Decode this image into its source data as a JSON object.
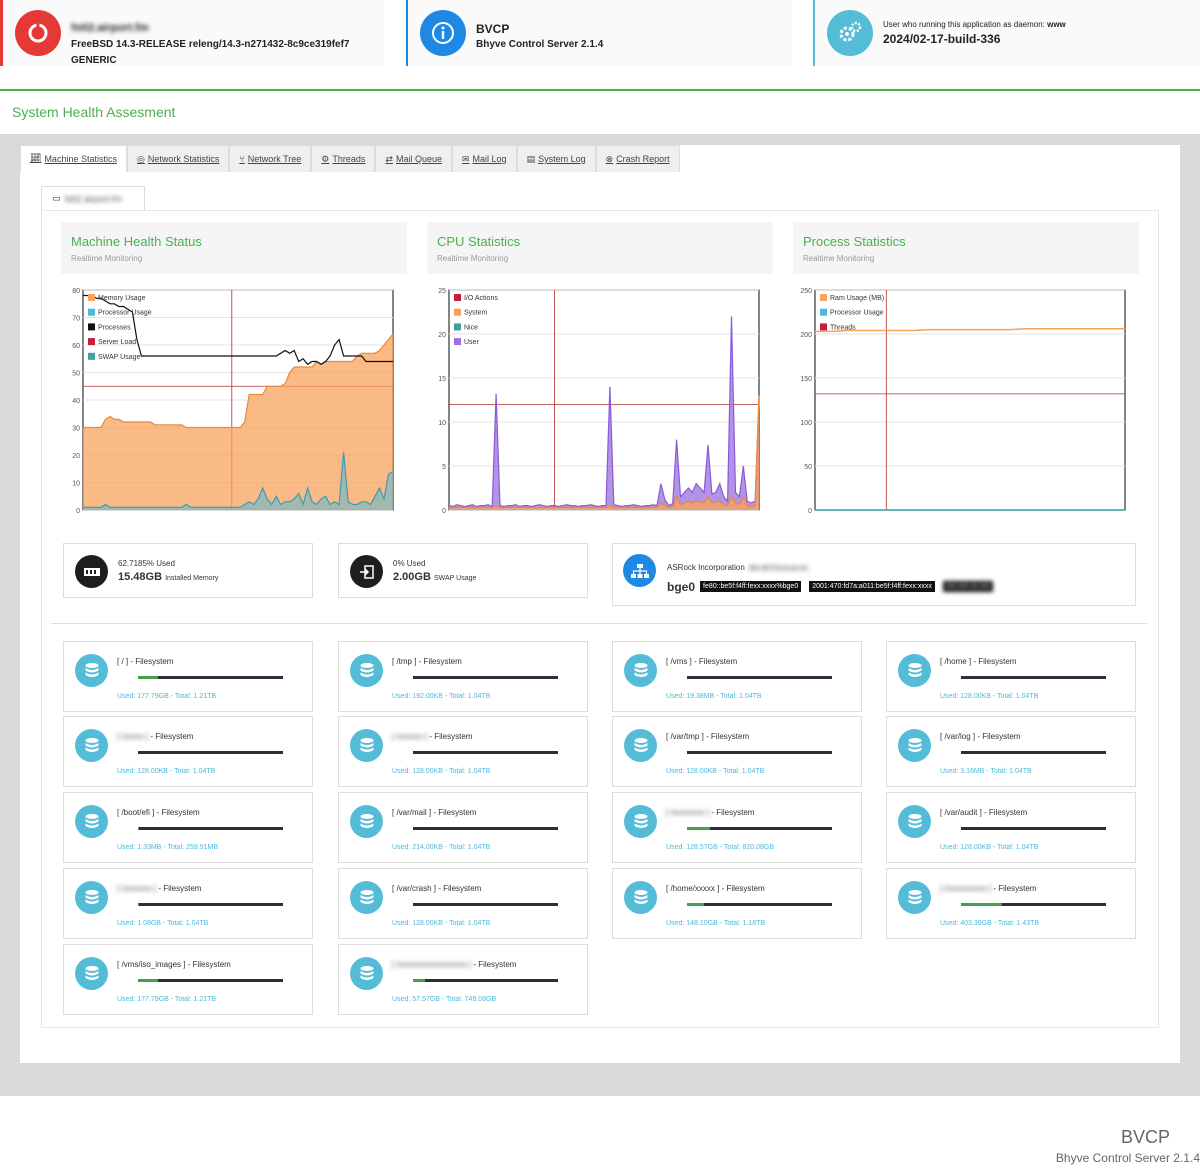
{
  "header": {
    "host_name": "fstt2.airport.fm",
    "os_version": "FreeBSD 14.3-RELEASE releng/14.3-n271432-8c9ce319fef7 GENERIC",
    "app_name": "BVCP",
    "app_full": "Bhyve Control Server 2.1.4",
    "daemon_label": "User who running this application as daemon:",
    "daemon_user": "www",
    "build": "2024/02-17-build-336"
  },
  "page": {
    "section_title": "System Health Assesment"
  },
  "tabs": [
    {
      "label": "Machine Statistics",
      "icon": "chart-icon"
    },
    {
      "label": "Network Statistics",
      "icon": "globe-icon"
    },
    {
      "label": "Network Tree",
      "icon": "tree-icon"
    },
    {
      "label": "Threads",
      "icon": "threads-icon"
    },
    {
      "label": "Mail Queue",
      "icon": "exchange-icon"
    },
    {
      "label": "Mail Log",
      "icon": "envelope-icon"
    },
    {
      "label": "System Log",
      "icon": "folder-icon"
    },
    {
      "label": "Crash Report",
      "icon": "times-circle-icon"
    }
  ],
  "inner_tab": {
    "label": "fstt2.airport.fm"
  },
  "charts": [
    {
      "title": "Machine Health Status",
      "subtitle": "Realtime Monitoring"
    },
    {
      "title": "CPU Statistics",
      "subtitle": "Realtime Monitoring"
    },
    {
      "title": "Process Statistics",
      "subtitle": "Realtime Monitoring"
    }
  ],
  "chart_data": [
    {
      "type": "area",
      "title": "Machine Health Status",
      "ylim": [
        0,
        80
      ],
      "yticks": [
        0,
        10,
        20,
        30,
        40,
        50,
        60,
        70,
        80
      ],
      "legend": [
        "Memory Usage",
        "Processor Usage",
        "Processes",
        "Server Load",
        "SWAP Usage"
      ],
      "legend_colors": [
        "#f7a35c",
        "#4db8d8",
        "#111111",
        "#c0203c",
        "#41a0a0"
      ],
      "series": [
        {
          "name": "Memory Usage",
          "values": [
            30,
            30,
            30,
            30,
            30,
            33,
            34,
            33,
            33,
            32,
            32,
            32,
            32,
            32,
            32,
            32,
            31,
            31,
            31,
            31,
            31,
            31,
            31,
            30,
            30,
            30,
            30,
            30,
            30,
            30,
            30,
            30,
            30,
            30,
            30,
            30,
            32,
            42,
            42,
            42,
            42,
            45,
            45,
            45,
            45,
            46,
            50,
            52,
            52,
            52,
            52,
            52,
            54,
            53,
            54,
            54,
            54,
            54,
            54,
            54,
            54,
            56,
            57,
            57,
            57,
            57,
            58,
            60,
            62,
            64
          ]
        },
        {
          "name": "Processes",
          "values": [
            78,
            78,
            78,
            77,
            77,
            76,
            75,
            75,
            74,
            74,
            73,
            72,
            62,
            56,
            56,
            56,
            56,
            56,
            56,
            56,
            56,
            56,
            56,
            56,
            56,
            56,
            56,
            56,
            56,
            56,
            56,
            56,
            56,
            56,
            56,
            56,
            56,
            56,
            56,
            56,
            56,
            56,
            56,
            56,
            57,
            58,
            57,
            58,
            54,
            55,
            53,
            54,
            54,
            53,
            54,
            56,
            60,
            62,
            56,
            56,
            56,
            56,
            56,
            54,
            54,
            54,
            54,
            54,
            54,
            54
          ]
        },
        {
          "name": "Processor Usage",
          "values": [
            1,
            1,
            1,
            1,
            1,
            2,
            1,
            1,
            1,
            1,
            1,
            1,
            1,
            1,
            1,
            1,
            1,
            1,
            1,
            1,
            1,
            1,
            1,
            2,
            1,
            1,
            1,
            1,
            1,
            1,
            1,
            1,
            1,
            1,
            1,
            1,
            2,
            3,
            2,
            4,
            8,
            4,
            2,
            5,
            2,
            3,
            3,
            4,
            6,
            2,
            8,
            3,
            2,
            4,
            5,
            2,
            3,
            2,
            21,
            3,
            2,
            2,
            3,
            3,
            2,
            5,
            8,
            4,
            13,
            14
          ]
        }
      ]
    },
    {
      "type": "area",
      "title": "CPU Statistics",
      "ylim": [
        0,
        25
      ],
      "yticks": [
        0,
        5,
        10,
        15,
        20,
        25
      ],
      "legend": [
        "I/O Actions",
        "System",
        "Nice",
        "User"
      ],
      "legend_colors": [
        "#c0203c",
        "#f7a35c",
        "#41a0a0",
        "#9a6fe0"
      ],
      "series": [
        {
          "name": "User",
          "values": [
            0.5,
            0.4,
            0.6,
            0.5,
            0.4,
            0.5,
            0.6,
            0.4,
            0.5,
            0.5,
            0.6,
            0.4,
            13.2,
            0.5,
            0.4,
            0.5,
            0.5,
            0.6,
            0.4,
            0.5,
            0.5,
            0.4,
            0.5,
            0.6,
            0.5,
            0.4,
            0.5,
            0.5,
            0.4,
            0.5,
            0.6,
            0.5,
            0.5,
            0.4,
            0.5,
            0.5,
            0.6,
            0.5,
            0.4,
            0.5,
            0.5,
            14.0,
            0.6,
            0.5,
            0.4,
            0.5,
            0.5,
            0.6,
            0.5,
            0.4,
            0.5,
            0.5,
            0.6,
            0.5,
            3.0,
            1.2,
            0.5,
            0.7,
            8.0,
            1.5,
            2.0,
            2.5,
            2.0,
            3.0,
            2.5,
            2.0,
            7.4,
            1.8,
            2.0,
            3.0,
            1.5,
            1.0,
            22.0,
            2.0,
            1.5,
            5.0,
            1.0,
            0.8,
            1.0,
            12.8
          ]
        },
        {
          "name": "System",
          "values": [
            0.3,
            0.3,
            0.3,
            0.3,
            0.3,
            0.3,
            0.3,
            0.3,
            0.3,
            0.3,
            0.3,
            0.3,
            0.5,
            0.3,
            0.3,
            0.3,
            0.3,
            0.3,
            0.3,
            0.3,
            0.3,
            0.3,
            0.3,
            0.3,
            0.3,
            0.3,
            0.3,
            0.3,
            0.3,
            0.3,
            0.3,
            0.3,
            0.3,
            0.3,
            0.3,
            0.3,
            0.3,
            0.3,
            0.3,
            0.3,
            0.3,
            0.5,
            0.3,
            0.3,
            0.3,
            0.3,
            0.3,
            0.3,
            0.3,
            0.3,
            0.3,
            0.3,
            0.3,
            0.3,
            0.8,
            0.5,
            0.3,
            0.4,
            1.5,
            0.6,
            0.8,
            1.0,
            0.8,
            1.0,
            0.9,
            0.8,
            1.5,
            0.8,
            0.9,
            1.0,
            0.6,
            0.5,
            1.5,
            0.8,
            0.6,
            1.5,
            0.5,
            0.4,
            0.5,
            13.0
          ]
        }
      ]
    },
    {
      "type": "line",
      "title": "Process Statistics",
      "ylim": [
        0,
        250
      ],
      "yticks": [
        0,
        50,
        100,
        150,
        200,
        250
      ],
      "legend": [
        "Ram Usage (MB)",
        "Processor Usage",
        "Threads"
      ],
      "legend_colors": [
        "#f7a35c",
        "#4db8d8",
        "#c0203c"
      ],
      "series": [
        {
          "name": "Ram Usage (MB)",
          "values": [
            203,
            203,
            204,
            204,
            204,
            204,
            204,
            205,
            205,
            205,
            205,
            205,
            205,
            206,
            206,
            206,
            206,
            206,
            206,
            206
          ]
        },
        {
          "name": "Processor Usage",
          "values": [
            0,
            0,
            0,
            0,
            0,
            0,
            0,
            0,
            0,
            0,
            0,
            0,
            0,
            0,
            0,
            0,
            0,
            0,
            0,
            0
          ]
        },
        {
          "name": "Threads",
          "values": [
            0,
            0,
            0,
            0,
            0,
            0,
            0,
            0,
            0,
            0,
            0,
            0,
            0,
            0,
            0,
            0,
            0,
            0,
            0,
            0
          ]
        }
      ]
    }
  ],
  "memory": {
    "percent": "62.7185% Used",
    "value": "15.48GB",
    "label": "Installed Memory"
  },
  "swap": {
    "percent": "0% Used",
    "value": "2.00GB",
    "label": "SWAP Usage"
  },
  "network": {
    "vendor": "ASRock Incorporation",
    "mac": "BC:5F:F4:xx:xx:xx",
    "iface": "bge0",
    "addrs": [
      "fe80::be5f:f4ff:fexx:xxxx%bge0",
      "2001:470:fd7a:a011:be5f:f4ff:fexx:xxxx",
      "xxx.xxx.xx.xxx"
    ]
  },
  "filesystems": [
    {
      "name": "[ / ] - Filesystem",
      "usage": "Used: 177.79GB - Total: 1.21TB",
      "fill": 0.14,
      "blur": false
    },
    {
      "name": "[ /tmp ] - Filesystem",
      "usage": "Used: 192.00KB - Total: 1.04TB",
      "fill": 0.0,
      "blur": false
    },
    {
      "name": "[ /vms ] - Filesystem",
      "usage": "Used: 19.38MB - Total: 1.04TB",
      "fill": 0.0,
      "blur": false
    },
    {
      "name": "[ /home ] - Filesystem",
      "usage": "Used: 128.00KB - Total: 1.04TB",
      "fill": 0.0,
      "blur": false
    },
    {
      "name": "[ /xxxxx ] - Filesystem",
      "usage": "Used: 128.00KB - Total: 1.04TB",
      "fill": 0.0,
      "blur": true
    },
    {
      "name": "[ /xxxxxx ] - Filesystem",
      "usage": "Used: 128.00KB - Total: 1.04TB",
      "fill": 0.0,
      "blur": true
    },
    {
      "name": "[ /var/tmp ] - Filesystem",
      "usage": "Used: 128.00KB - Total: 1.04TB",
      "fill": 0.0,
      "blur": false
    },
    {
      "name": "[ /var/log ] - Filesystem",
      "usage": "Used: 3.16MB - Total: 1.04TB",
      "fill": 0.0,
      "blur": false
    },
    {
      "name": "[ /boot/efi ] - Filesystem",
      "usage": "Used: 1.33MB - Total: 259.91MB",
      "fill": 0.01,
      "blur": false
    },
    {
      "name": "[ /var/mail ] - Filesystem",
      "usage": "Used: 214.00KB - Total: 1.04TB",
      "fill": 0.0,
      "blur": false
    },
    {
      "name": "[ /xxxxxxxx ] - Filesystem",
      "usage": "Used: 128.57GB - Total: 820.08GB",
      "fill": 0.16,
      "blur": true
    },
    {
      "name": "[ /var/audit ] - Filesystem",
      "usage": "Used: 128.00KB - Total: 1.04TB",
      "fill": 0.0,
      "blur": false
    },
    {
      "name": "[ /xxxxxxx ] - Filesystem",
      "usage": "Used: 1.08GB - Total: 1.04TB",
      "fill": 0.01,
      "blur": true
    },
    {
      "name": "[ /var/crash ] - Filesystem",
      "usage": "Used: 128.00KB - Total: 1.04TB",
      "fill": 0.0,
      "blur": false
    },
    {
      "name": "[ /home/xxxxx ] - Filesystem",
      "usage": "Used: 148.10GB - Total: 1.18TB",
      "fill": 0.12,
      "blur": false
    },
    {
      "name": "[ /xxxxxxxxxx ] - Filesystem",
      "usage": "Used: 403.39GB - Total: 1.43TB",
      "fill": 0.28,
      "blur": true
    },
    {
      "name": "[ /vms/iso_images ] - Filesystem",
      "usage": "Used: 177.79GB - Total: 1.21TB",
      "fill": 0.14,
      "blur": false
    },
    {
      "name": "[ /xxxxxxxxxxxxxxxxx ] - Filesystem",
      "usage": "Used: 57.57GB - Total: 749.08GB",
      "fill": 0.08,
      "blur": true
    }
  ],
  "footer": {
    "title": "BVCP",
    "subtitle": "Bhyve Control Server 2.1.4"
  },
  "colors": {
    "accent": "#4caf50",
    "teal": "#55bcd8",
    "red_card": "#e53935",
    "blue_card": "#1e88e5",
    "grid_red": "#b03030",
    "memory_fill": "#f7a35c"
  }
}
